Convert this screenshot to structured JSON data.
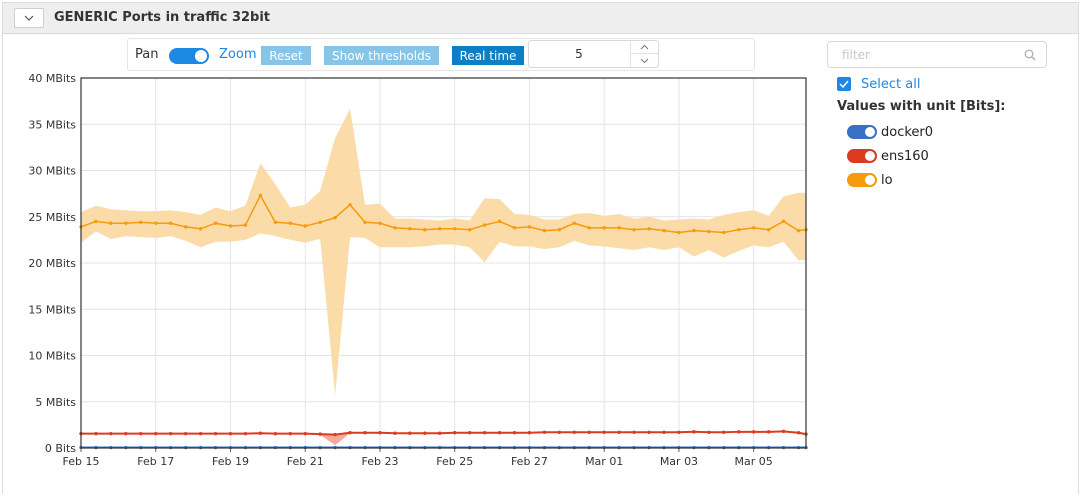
{
  "panel": {
    "title": "GENERIC Ports in traffic 32bit"
  },
  "toolbar": {
    "pan_label": "Pan",
    "zoom_label": "Zoom",
    "reset_label": "Reset",
    "thresholds_label": "Show thresholds",
    "realtime_label": "Real time",
    "interval_value": "5"
  },
  "sidebar": {
    "filter_placeholder": "filter",
    "select_all_label": "Select all",
    "unit_heading": "Values with unit [Bits]:",
    "series": [
      {
        "label": "docker0",
        "color": "#3a6fc6"
      },
      {
        "label": "ens160",
        "color": "#db3b1e"
      },
      {
        "label": "lo",
        "color": "#f59b0c"
      }
    ]
  },
  "chart_data": {
    "type": "line",
    "title": "",
    "xlabel": "",
    "ylabel": "",
    "ylim": [
      0,
      40
    ],
    "yunit": "MBits",
    "y_tick_labels": [
      "0 Bits",
      "5 MBits",
      "10 MBits",
      "15 MBits",
      "20 MBits",
      "25 MBits",
      "30 MBits",
      "35 MBits",
      "40 MBits"
    ],
    "x_tick_labels": [
      "Feb 15",
      "Feb 17",
      "Feb 19",
      "Feb 21",
      "Feb 23",
      "Feb 25",
      "Feb 27",
      "Mar 01",
      "Mar 03",
      "Mar 05"
    ],
    "x_range_days": [
      0,
      19
    ],
    "grid": true,
    "legend": "right",
    "series": [
      {
        "name": "lo",
        "color": "#f59b0c",
        "band_color": "#fbd8a0",
        "points": [
          [
            0,
            23.9
          ],
          [
            0.4,
            24.5
          ],
          [
            0.8,
            24.3
          ],
          [
            1.2,
            24.3
          ],
          [
            1.6,
            24.4
          ],
          [
            2.0,
            24.3
          ],
          [
            2.4,
            24.3
          ],
          [
            2.8,
            23.9
          ],
          [
            3.2,
            23.7
          ],
          [
            3.6,
            24.3
          ],
          [
            4.0,
            24.0
          ],
          [
            4.4,
            24.1
          ],
          [
            4.8,
            27.3
          ],
          [
            5.2,
            24.4
          ],
          [
            5.6,
            24.3
          ],
          [
            6.0,
            24.0
          ],
          [
            6.4,
            24.4
          ],
          [
            6.8,
            24.9
          ],
          [
            7.2,
            26.3
          ],
          [
            7.6,
            24.4
          ],
          [
            8.0,
            24.3
          ],
          [
            8.4,
            23.8
          ],
          [
            8.8,
            23.7
          ],
          [
            9.2,
            23.6
          ],
          [
            9.6,
            23.7
          ],
          [
            10.0,
            23.7
          ],
          [
            10.4,
            23.6
          ],
          [
            10.8,
            24.1
          ],
          [
            11.2,
            24.5
          ],
          [
            11.6,
            23.8
          ],
          [
            12.0,
            23.9
          ],
          [
            12.4,
            23.5
          ],
          [
            12.8,
            23.6
          ],
          [
            13.2,
            24.3
          ],
          [
            13.6,
            23.8
          ],
          [
            14.0,
            23.8
          ],
          [
            14.4,
            23.8
          ],
          [
            14.8,
            23.6
          ],
          [
            15.2,
            23.7
          ],
          [
            15.6,
            23.5
          ],
          [
            16.0,
            23.3
          ],
          [
            16.4,
            23.5
          ],
          [
            16.8,
            23.4
          ],
          [
            17.2,
            23.3
          ],
          [
            17.6,
            23.6
          ],
          [
            18.0,
            23.8
          ],
          [
            18.4,
            23.6
          ],
          [
            18.8,
            24.5
          ],
          [
            19.2,
            23.5
          ],
          [
            19.4,
            23.6
          ]
        ],
        "upper": [
          [
            0,
            25.5
          ],
          [
            0.4,
            26.2
          ],
          [
            0.8,
            25.8
          ],
          [
            1.2,
            25.7
          ],
          [
            1.6,
            25.6
          ],
          [
            2.0,
            25.6
          ],
          [
            2.4,
            25.7
          ],
          [
            2.8,
            25.5
          ],
          [
            3.2,
            25.2
          ],
          [
            3.6,
            26.0
          ],
          [
            4.0,
            25.6
          ],
          [
            4.4,
            26.2
          ],
          [
            4.8,
            30.8
          ],
          [
            5.2,
            28.5
          ],
          [
            5.6,
            26.0
          ],
          [
            6.0,
            26.3
          ],
          [
            6.4,
            27.8
          ],
          [
            6.8,
            33.5
          ],
          [
            7.2,
            36.7
          ],
          [
            7.6,
            26.3
          ],
          [
            8.0,
            26.4
          ],
          [
            8.4,
            24.8
          ],
          [
            8.8,
            24.8
          ],
          [
            9.2,
            24.7
          ],
          [
            9.6,
            24.6
          ],
          [
            10.0,
            24.8
          ],
          [
            10.4,
            24.6
          ],
          [
            10.8,
            27.0
          ],
          [
            11.2,
            26.9
          ],
          [
            11.6,
            25.3
          ],
          [
            12.0,
            25.2
          ],
          [
            12.4,
            24.7
          ],
          [
            12.8,
            24.7
          ],
          [
            13.2,
            25.3
          ],
          [
            13.6,
            25.4
          ],
          [
            14.0,
            25.1
          ],
          [
            14.4,
            25.3
          ],
          [
            14.8,
            24.8
          ],
          [
            15.2,
            25.0
          ],
          [
            15.6,
            24.6
          ],
          [
            16.0,
            24.7
          ],
          [
            16.4,
            24.8
          ],
          [
            16.8,
            24.7
          ],
          [
            17.2,
            25.2
          ],
          [
            17.6,
            25.5
          ],
          [
            18.0,
            25.7
          ],
          [
            18.4,
            25.1
          ],
          [
            18.8,
            27.2
          ],
          [
            19.2,
            27.6
          ],
          [
            19.4,
            27.6
          ]
        ],
        "lower": [
          [
            0,
            22.2
          ],
          [
            0.4,
            23.4
          ],
          [
            0.8,
            22.6
          ],
          [
            1.2,
            22.9
          ],
          [
            1.6,
            22.8
          ],
          [
            2.0,
            22.7
          ],
          [
            2.4,
            22.9
          ],
          [
            2.8,
            22.4
          ],
          [
            3.2,
            21.7
          ],
          [
            3.6,
            22.3
          ],
          [
            4.0,
            22.3
          ],
          [
            4.4,
            22.5
          ],
          [
            4.8,
            23.2
          ],
          [
            5.2,
            22.9
          ],
          [
            5.6,
            22.5
          ],
          [
            6.0,
            22.2
          ],
          [
            6.4,
            22.6
          ],
          [
            6.8,
            5.7
          ],
          [
            7.2,
            22.8
          ],
          [
            7.6,
            22.7
          ],
          [
            8.0,
            21.7
          ],
          [
            8.4,
            21.7
          ],
          [
            8.8,
            21.7
          ],
          [
            9.2,
            21.8
          ],
          [
            9.6,
            22.0
          ],
          [
            10.0,
            22.0
          ],
          [
            10.4,
            21.7
          ],
          [
            10.8,
            20.1
          ],
          [
            11.2,
            22.3
          ],
          [
            11.6,
            21.8
          ],
          [
            12.0,
            21.8
          ],
          [
            12.4,
            21.5
          ],
          [
            12.8,
            21.7
          ],
          [
            13.2,
            22.4
          ],
          [
            13.6,
            21.9
          ],
          [
            14.0,
            21.8
          ],
          [
            14.4,
            21.6
          ],
          [
            14.8,
            21.4
          ],
          [
            15.2,
            21.7
          ],
          [
            15.6,
            21.4
          ],
          [
            16.0,
            21.7
          ],
          [
            16.4,
            20.7
          ],
          [
            16.8,
            21.4
          ],
          [
            17.2,
            20.6
          ],
          [
            17.6,
            21.3
          ],
          [
            18.0,
            21.9
          ],
          [
            18.4,
            21.7
          ],
          [
            18.8,
            22.3
          ],
          [
            19.2,
            20.3
          ],
          [
            19.4,
            20.3
          ]
        ]
      },
      {
        "name": "ens160",
        "color": "#db3b1e",
        "band_color": "#f3a38f",
        "points": [
          [
            0,
            1.55
          ],
          [
            0.4,
            1.55
          ],
          [
            0.8,
            1.55
          ],
          [
            1.2,
            1.55
          ],
          [
            1.6,
            1.55
          ],
          [
            2.0,
            1.55
          ],
          [
            2.4,
            1.55
          ],
          [
            2.8,
            1.55
          ],
          [
            3.2,
            1.55
          ],
          [
            3.6,
            1.55
          ],
          [
            4.0,
            1.55
          ],
          [
            4.4,
            1.55
          ],
          [
            4.8,
            1.6
          ],
          [
            5.2,
            1.55
          ],
          [
            5.6,
            1.55
          ],
          [
            6.0,
            1.55
          ],
          [
            6.4,
            1.5
          ],
          [
            6.8,
            1.45
          ],
          [
            7.2,
            1.65
          ],
          [
            7.6,
            1.65
          ],
          [
            8.0,
            1.65
          ],
          [
            8.4,
            1.6
          ],
          [
            8.8,
            1.6
          ],
          [
            9.2,
            1.6
          ],
          [
            9.6,
            1.6
          ],
          [
            10.0,
            1.65
          ],
          [
            10.4,
            1.65
          ],
          [
            10.8,
            1.65
          ],
          [
            11.2,
            1.65
          ],
          [
            11.6,
            1.65
          ],
          [
            12.0,
            1.65
          ],
          [
            12.4,
            1.7
          ],
          [
            12.8,
            1.7
          ],
          [
            13.2,
            1.7
          ],
          [
            13.6,
            1.7
          ],
          [
            14.0,
            1.7
          ],
          [
            14.4,
            1.7
          ],
          [
            14.8,
            1.7
          ],
          [
            15.2,
            1.7
          ],
          [
            15.6,
            1.7
          ],
          [
            16.0,
            1.7
          ],
          [
            16.4,
            1.75
          ],
          [
            16.8,
            1.7
          ],
          [
            17.2,
            1.7
          ],
          [
            17.6,
            1.75
          ],
          [
            18.0,
            1.75
          ],
          [
            18.4,
            1.75
          ],
          [
            18.8,
            1.8
          ],
          [
            19.2,
            1.65
          ],
          [
            19.4,
            1.5
          ]
        ],
        "upper": [
          [
            6.4,
            1.55
          ],
          [
            6.8,
            1.5
          ],
          [
            7.2,
            1.65
          ]
        ],
        "lower": [
          [
            6.4,
            1.4
          ],
          [
            6.8,
            0.3
          ],
          [
            7.2,
            1.6
          ]
        ]
      },
      {
        "name": "docker0",
        "color": "#3a6fc6",
        "points": [
          [
            0,
            0.05
          ],
          [
            0.4,
            0.05
          ],
          [
            0.8,
            0.05
          ],
          [
            1.2,
            0.05
          ],
          [
            1.6,
            0.05
          ],
          [
            2.0,
            0.05
          ],
          [
            2.4,
            0.05
          ],
          [
            2.8,
            0.05
          ],
          [
            3.2,
            0.05
          ],
          [
            3.6,
            0.05
          ],
          [
            4.0,
            0.05
          ],
          [
            4.4,
            0.05
          ],
          [
            4.8,
            0.05
          ],
          [
            5.2,
            0.05
          ],
          [
            5.6,
            0.05
          ],
          [
            6.0,
            0.05
          ],
          [
            6.4,
            0.05
          ],
          [
            6.8,
            0.05
          ],
          [
            7.2,
            0.05
          ],
          [
            7.6,
            0.05
          ],
          [
            8.0,
            0.05
          ],
          [
            8.4,
            0.05
          ],
          [
            8.8,
            0.05
          ],
          [
            9.2,
            0.05
          ],
          [
            9.6,
            0.05
          ],
          [
            10.0,
            0.05
          ],
          [
            10.4,
            0.05
          ],
          [
            10.8,
            0.05
          ],
          [
            11.2,
            0.05
          ],
          [
            11.6,
            0.05
          ],
          [
            12.0,
            0.05
          ],
          [
            12.4,
            0.05
          ],
          [
            12.8,
            0.05
          ],
          [
            13.2,
            0.05
          ],
          [
            13.6,
            0.05
          ],
          [
            14.0,
            0.05
          ],
          [
            14.4,
            0.05
          ],
          [
            14.8,
            0.05
          ],
          [
            15.2,
            0.05
          ],
          [
            15.6,
            0.05
          ],
          [
            16.0,
            0.05
          ],
          [
            16.4,
            0.05
          ],
          [
            16.8,
            0.05
          ],
          [
            17.2,
            0.05
          ],
          [
            17.6,
            0.05
          ],
          [
            18.0,
            0.05
          ],
          [
            18.4,
            0.05
          ],
          [
            18.8,
            0.05
          ],
          [
            19.2,
            0.05
          ],
          [
            19.4,
            0.05
          ]
        ]
      }
    ]
  }
}
